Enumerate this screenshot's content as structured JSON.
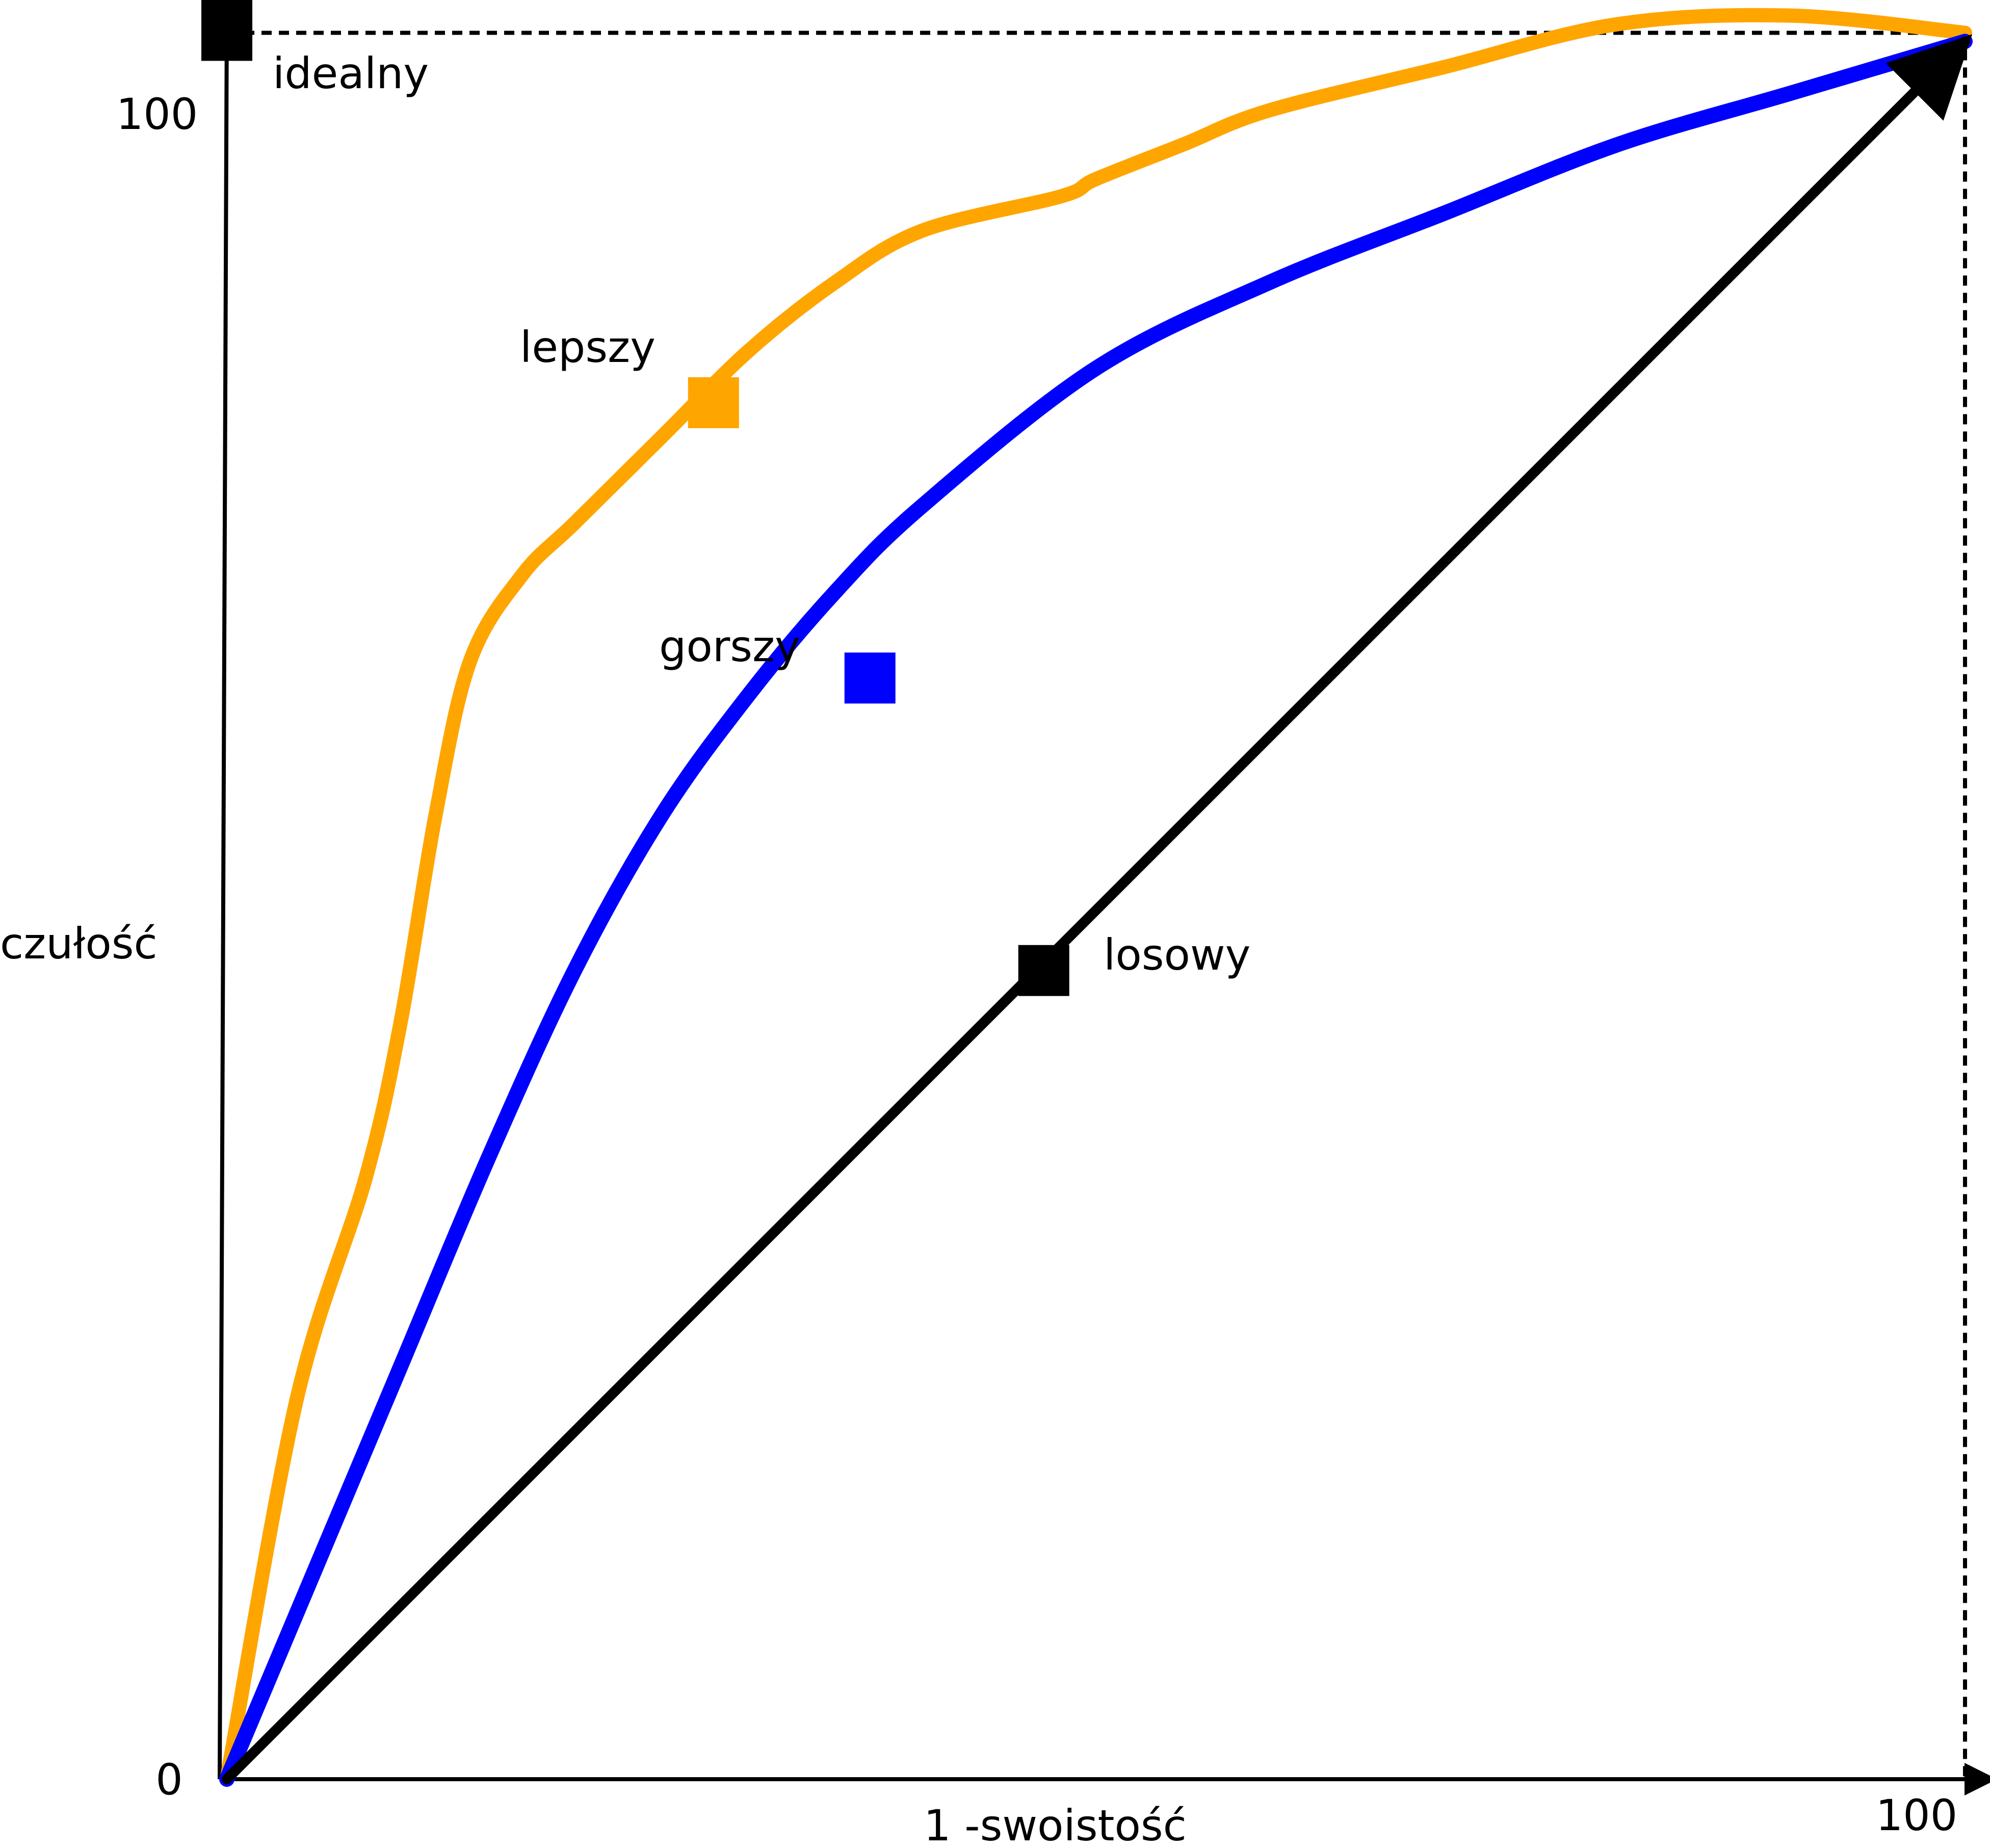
{
  "chart_data": {
    "type": "line",
    "title": "",
    "xlabel": "1 -swoistość",
    "ylabel": "czułość",
    "xlim": [
      0,
      100
    ],
    "ylim": [
      0,
      100
    ],
    "x_ticks": [
      "0",
      "100"
    ],
    "y_ticks": [
      "100"
    ],
    "grid": false,
    "colors": {
      "lepszy": "#ffa500",
      "gorszy": "#0000ff",
      "losowy": "#000000",
      "axis": "#000000"
    },
    "series": [
      {
        "key": "lepszy",
        "name": "lepszy",
        "x": [
          0,
          4,
          8,
          10,
          12,
          14,
          17,
          20,
          25,
          30,
          35,
          40,
          48,
          50,
          55,
          60,
          70,
          80,
          90,
          100
        ],
        "y": [
          0,
          22,
          35,
          44,
          56,
          65,
          70,
          73,
          78,
          83,
          87,
          90,
          92,
          93,
          95,
          97,
          99.5,
          102,
          102.5,
          101.5
        ],
        "marker": {
          "x": 28,
          "y": 80
        }
      },
      {
        "key": "gorszy",
        "name": "gorszy",
        "x": [
          0,
          5,
          10,
          15,
          20,
          25,
          30,
          35,
          40,
          50,
          60,
          70,
          80,
          90,
          100
        ],
        "y": [
          0,
          12,
          24,
          36,
          47,
          56,
          63,
          69,
          74,
          82,
          87,
          91,
          95,
          98,
          101
        ],
        "marker": {
          "x": 37,
          "y": 64
        }
      },
      {
        "key": "losowy",
        "name": "losowy",
        "x": [
          0,
          100
        ],
        "y": [
          0,
          101
        ],
        "marker": {
          "x": 47,
          "y": 47
        }
      }
    ],
    "ideal_point": {
      "label": "idealny",
      "x": 0,
      "y": 101.5
    },
    "ideal_guide": {
      "corner_x": 100,
      "corner_y": 101.5
    }
  }
}
